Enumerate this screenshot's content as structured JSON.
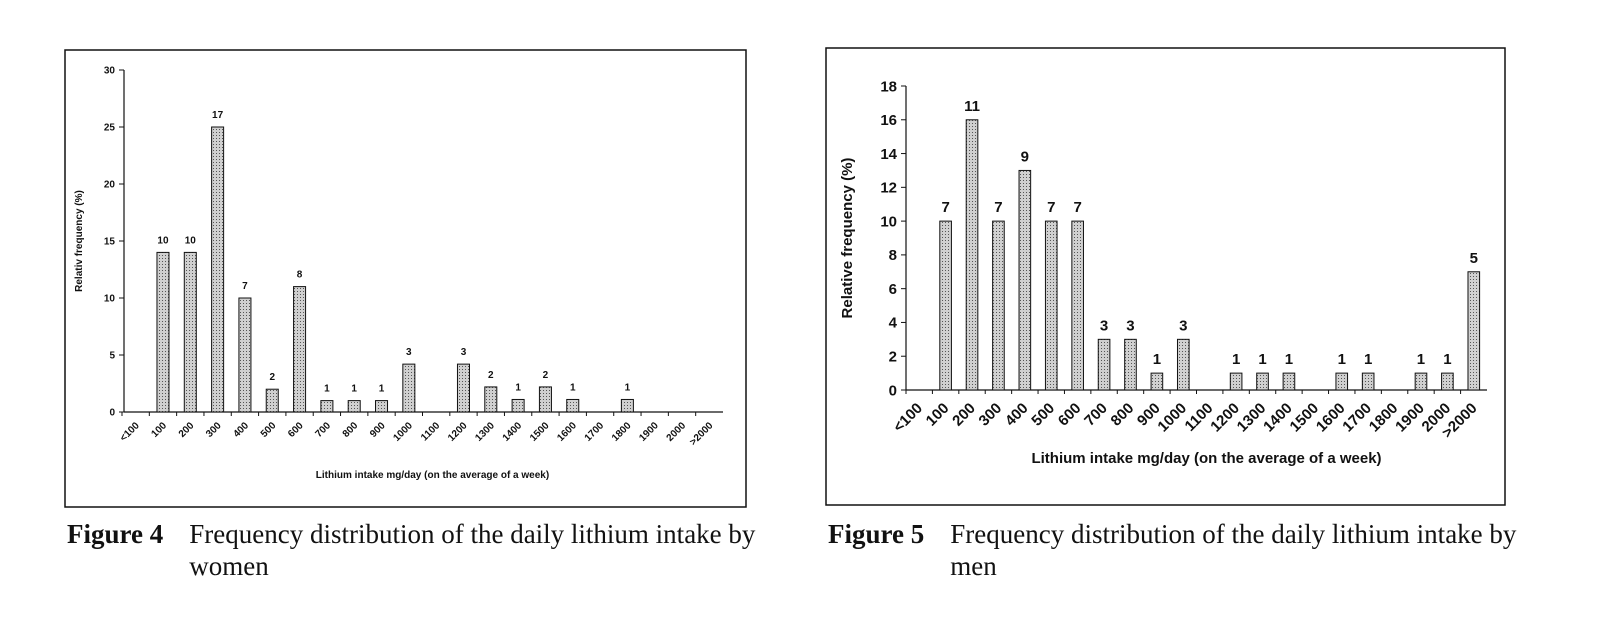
{
  "chart_data": [
    {
      "type": "bar",
      "x_label": "Lithium intake mg/day (on the average of a week)",
      "y_label": "Relativ frequency (%)",
      "categories": [
        "<100",
        "100",
        "200",
        "300",
        "400",
        "500",
        "600",
        "700",
        "800",
        "900",
        "1000",
        "1100",
        "1200",
        "1300",
        "1400",
        "1500",
        "1600",
        "1700",
        "1800",
        "1900",
        "2000",
        ">2000"
      ],
      "series": [
        {
          "color": "#bdbdbd",
          "values": [
            null,
            14,
            14,
            25,
            10,
            2,
            11,
            1,
            1,
            1,
            4.2,
            null,
            4.2,
            2.2,
            1.1,
            2.2,
            1.1,
            null,
            1.1,
            null,
            null,
            null
          ],
          "counts": [
            null,
            10,
            10,
            17,
            7,
            2,
            8,
            1,
            1,
            1,
            3,
            null,
            3,
            2,
            1,
            2,
            1,
            null,
            1,
            null,
            null,
            null
          ]
        }
      ],
      "ylim": [
        0,
        30
      ],
      "yticks": [
        0,
        5,
        10,
        15,
        20,
        25,
        30
      ]
    },
    {
      "type": "bar",
      "x_label": "Lithium intake mg/day (on the average of a week)",
      "y_label": "Relative frequency (%)",
      "categories": [
        "<100",
        "100",
        "200",
        "300",
        "400",
        "500",
        "600",
        "700",
        "800",
        "900",
        "1000",
        "1100",
        "1200",
        "1300",
        "1400",
        "1500",
        "1600",
        "1700",
        "1800",
        "1900",
        "2000",
        ">2000"
      ],
      "series": [
        {
          "color": "#bdbdbd",
          "values": [
            null,
            10,
            16,
            10,
            13,
            10,
            10,
            3,
            3,
            1,
            3,
            null,
            1,
            1,
            1,
            null,
            1,
            1,
            null,
            1,
            1,
            7
          ],
          "counts": [
            null,
            7,
            11,
            7,
            9,
            7,
            7,
            3,
            3,
            1,
            3,
            null,
            1,
            1,
            1,
            null,
            1,
            1,
            null,
            1,
            1,
            5
          ]
        }
      ],
      "ylim": [
        0,
        18
      ],
      "yticks": [
        0,
        2,
        4,
        6,
        8,
        10,
        12,
        14,
        16,
        18
      ]
    }
  ],
  "captions": [
    {
      "label": "Figure 4",
      "text": "Frequency distribution of the daily lithium intake by women"
    },
    {
      "label": "Figure 5",
      "text": "Frequency distribution of the daily lithium intake by men"
    }
  ]
}
